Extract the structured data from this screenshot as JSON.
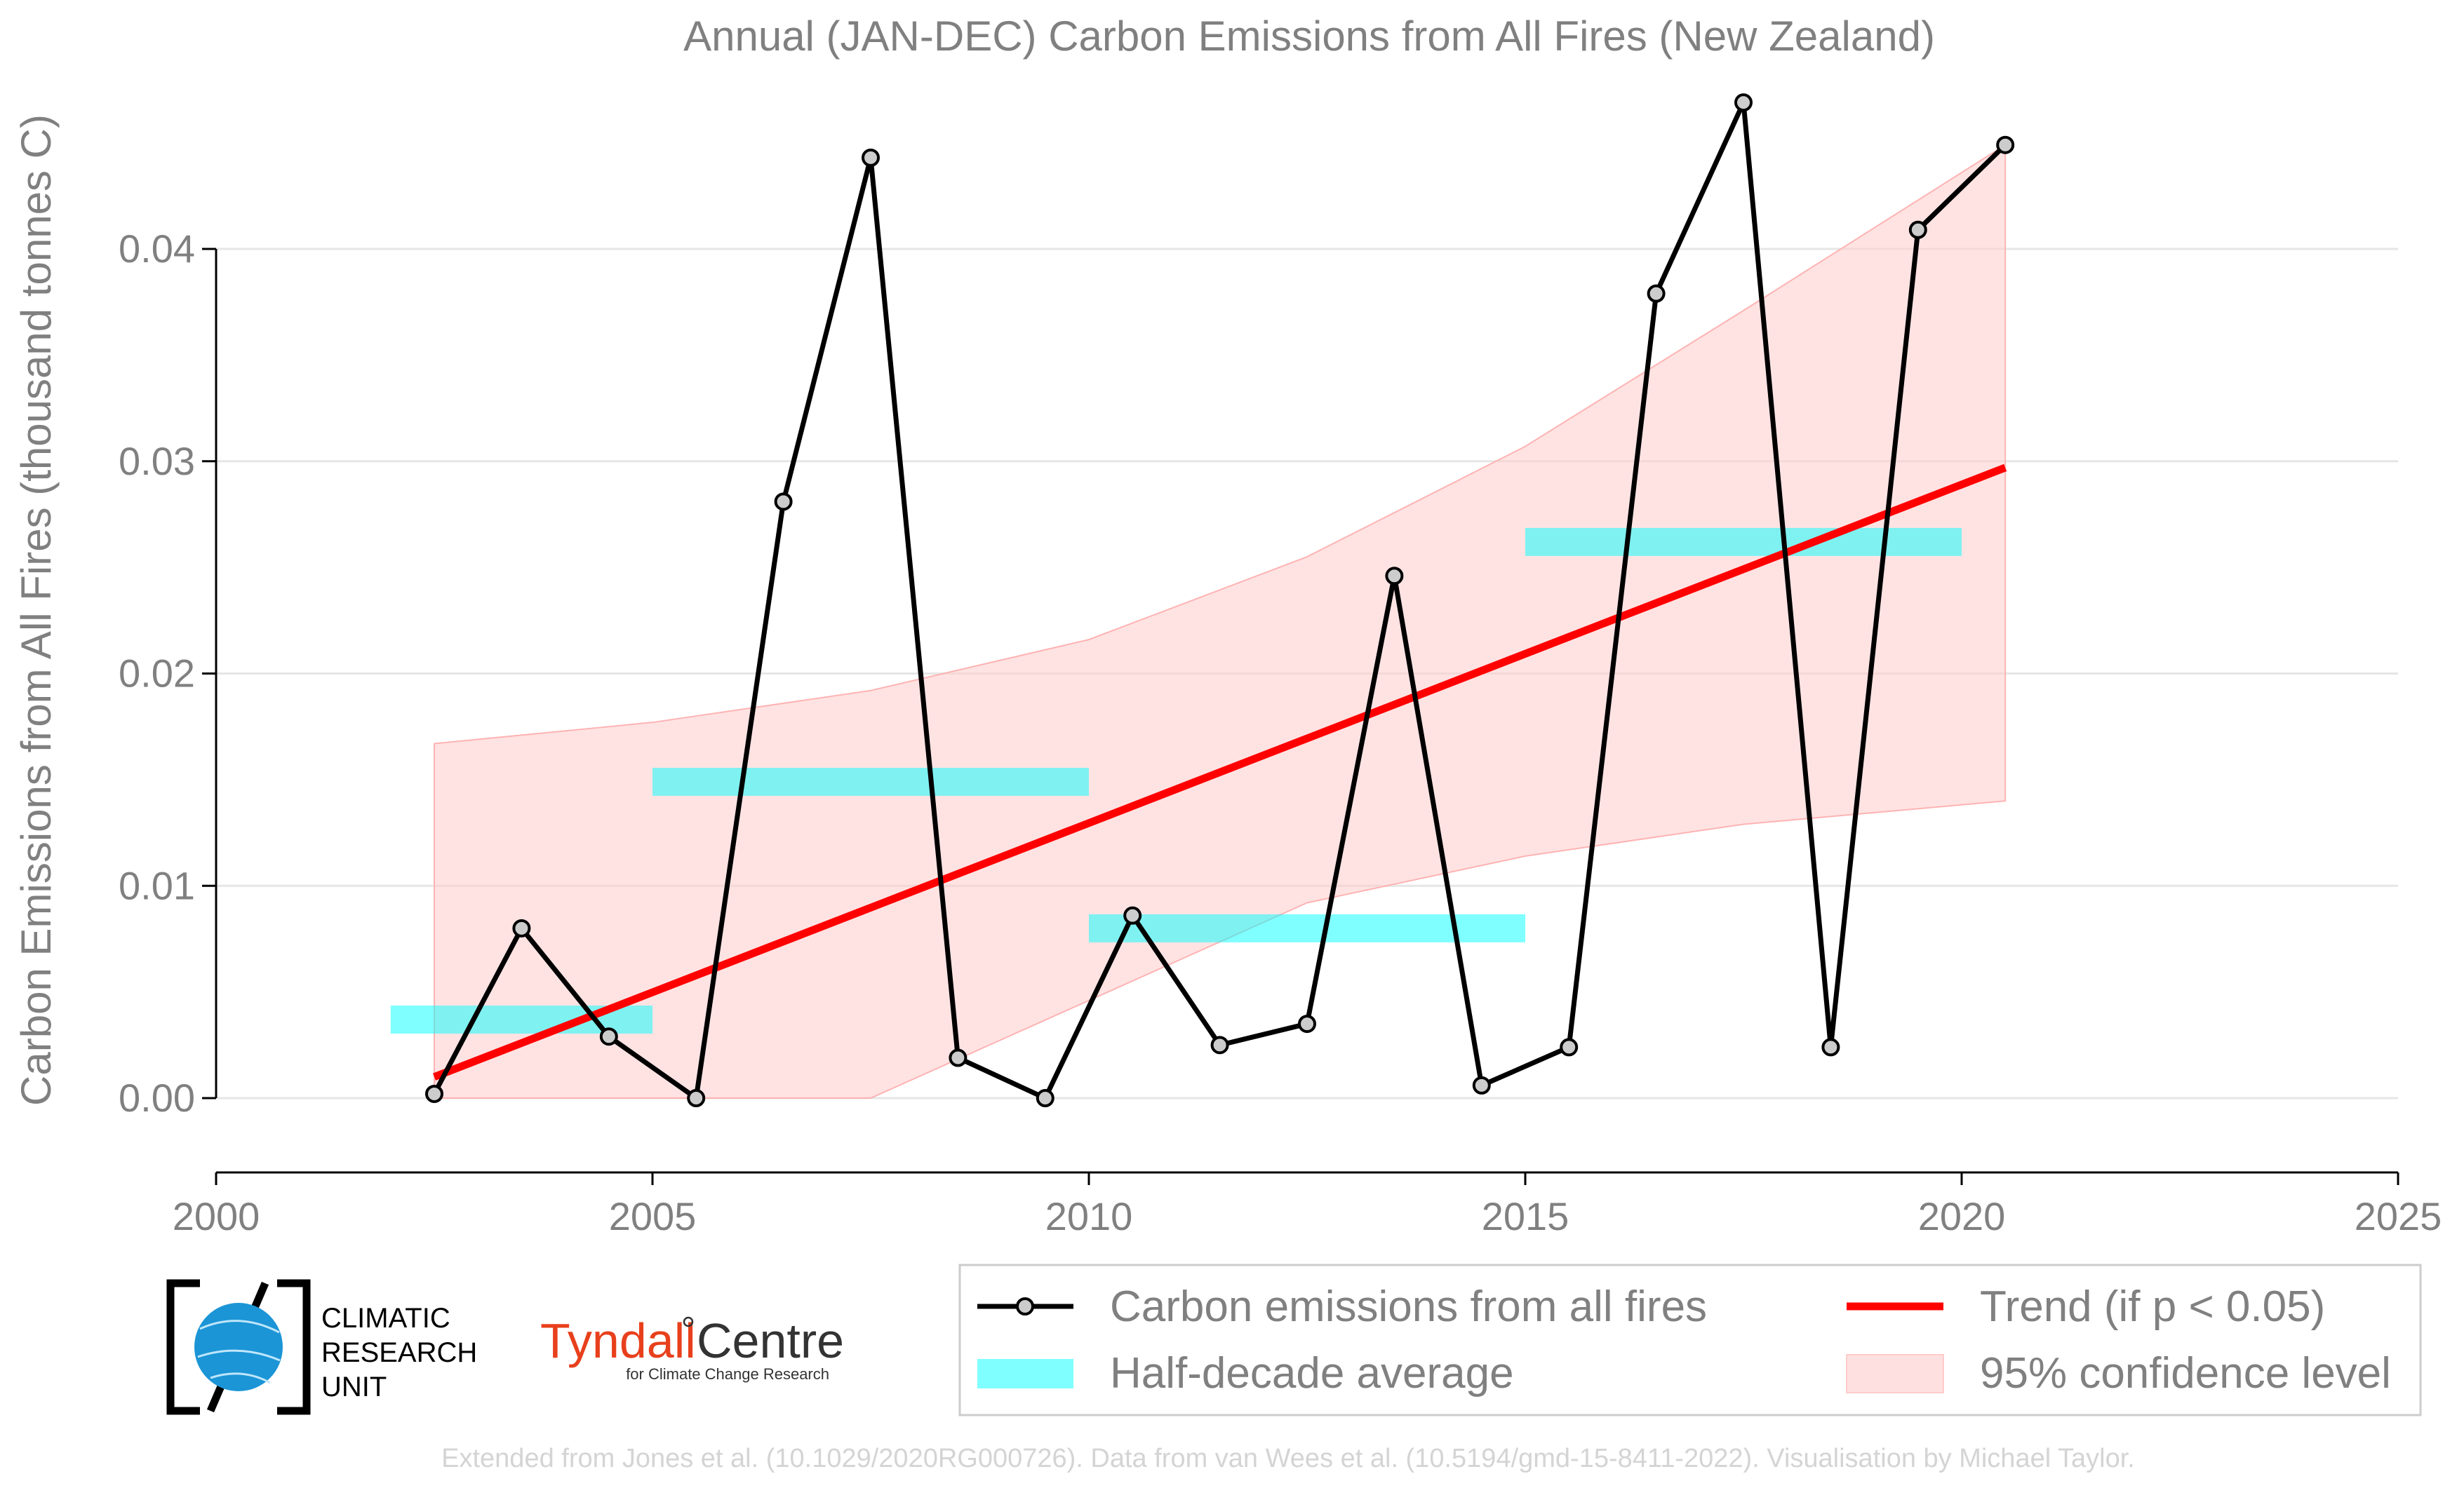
{
  "chart_data": {
    "type": "line",
    "title": "Annual (JAN-DEC) Carbon Emissions from All Fires (New Zealand)",
    "xlabel": "",
    "ylabel": "Carbon Emissions from All Fires (thousand tonnes C)",
    "xlim": [
      2000,
      2025
    ],
    "ylim": [
      -0.0035,
      0.0475
    ],
    "xticks": [
      2000,
      2005,
      2010,
      2015,
      2020,
      2025
    ],
    "xtick_labels": [
      "2000",
      "2005",
      "2010",
      "2015",
      "2020",
      "2025"
    ],
    "yticks": [
      0.0,
      0.01,
      0.02,
      0.03,
      0.04
    ],
    "ytick_labels": [
      "0.00",
      "0.01",
      "0.02",
      "0.03",
      "0.04"
    ],
    "grid": "horizontal",
    "series": [
      {
        "name": "Carbon emissions from all fires",
        "color": "#000000",
        "x": [
          2002.5,
          2003.5,
          2004.5,
          2005.5,
          2006.5,
          2007.5,
          2008.5,
          2009.5,
          2010.5,
          2011.5,
          2012.5,
          2013.5,
          2014.5,
          2015.5,
          2016.5,
          2017.5,
          2018.5,
          2019.5,
          2020.5
        ],
        "values": [
          0.0002,
          0.008,
          0.0029,
          0.0,
          0.0281,
          0.0443,
          0.0019,
          0.0,
          0.0086,
          0.0025,
          0.0035,
          0.0246,
          0.0006,
          0.0024,
          0.0379,
          0.0469,
          0.0024,
          0.0409,
          0.0449
        ]
      }
    ],
    "half_decade_average": {
      "name": "Half-decade average",
      "color": "#00ffff",
      "segments": [
        {
          "x0": 2002,
          "x1": 2005,
          "value": 0.0037
        },
        {
          "x0": 2005,
          "x1": 2010,
          "value": 0.0149
        },
        {
          "x0": 2010,
          "x1": 2015,
          "value": 0.008
        },
        {
          "x0": 2015,
          "x1": 2020,
          "value": 0.0262
        }
      ]
    },
    "trend": {
      "name": "Trend (if p < 0.05)",
      "color": "#ff0000",
      "x": [
        2002.5,
        2020.5
      ],
      "values": [
        0.001,
        0.0297
      ]
    },
    "confidence_band": {
      "name": "95% confidence level",
      "color": "#ffcccc",
      "x": [
        2002.5,
        2005,
        2007.5,
        2010,
        2012.5,
        2015,
        2017.5,
        2020.5
      ],
      "upper": [
        0.0167,
        0.0177,
        0.0192,
        0.0216,
        0.0255,
        0.0307,
        0.0371,
        0.0449
      ],
      "lower": [
        0.0,
        0.0,
        0.0,
        0.0046,
        0.0092,
        0.0114,
        0.0129,
        0.014
      ]
    },
    "legend": {
      "placement": "bottom-right",
      "entries": [
        "Carbon emissions from all fires",
        "Trend (if p < 0.05)",
        "Half-decade average",
        "95% confidence level"
      ]
    }
  },
  "logos": {
    "cru_lines": [
      "CLIMATIC",
      "RESEARCH",
      "UNIT"
    ],
    "tyndall_name": "Tyndall",
    "tyndall_centre": "Centre",
    "tyndall_sub": "for Climate Change Research"
  },
  "footer": "Extended from Jones et al. (10.1029/2020RG000726). Data from van Wees et al. (10.5194/gmd-15-8411-2022). Visualisation by Michael Taylor."
}
